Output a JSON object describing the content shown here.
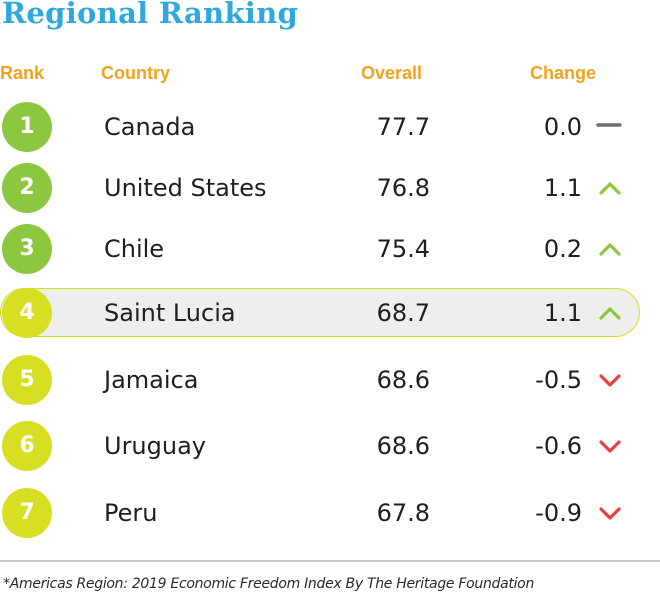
{
  "title": "Regional Ranking",
  "headers": {
    "rank": "Rank",
    "country": "Country",
    "overall": "Overall",
    "change": "Change"
  },
  "colors": {
    "title": "#2fa8dc",
    "header": "#f2a31b",
    "badge_green": "#8dc63f",
    "badge_lime": "#d7df23",
    "up": "#8dc63f",
    "down": "#e8413c",
    "flat": "#6d6e71",
    "highlight_bg": "#eeeeee",
    "highlight_border": "#d7df23"
  },
  "rows": [
    {
      "rank": "1",
      "country": "Canada",
      "overall": "77.7",
      "change": "0.0",
      "trend": "flat",
      "badge": "green",
      "highlight": false
    },
    {
      "rank": "2",
      "country": "United States",
      "overall": "76.8",
      "change": "1.1",
      "trend": "up",
      "badge": "green",
      "highlight": false
    },
    {
      "rank": "3",
      "country": "Chile",
      "overall": "75.4",
      "change": "0.2",
      "trend": "up",
      "badge": "green",
      "highlight": false
    },
    {
      "rank": "4",
      "country": "Saint Lucia",
      "overall": "68.7",
      "change": "1.1",
      "trend": "up",
      "badge": "lime",
      "highlight": true
    },
    {
      "rank": "5",
      "country": "Jamaica",
      "overall": "68.6",
      "change": "-0.5",
      "trend": "down",
      "badge": "lime",
      "highlight": false
    },
    {
      "rank": "6",
      "country": "Uruguay",
      "overall": "68.6",
      "change": "-0.6",
      "trend": "down",
      "badge": "lime",
      "highlight": false
    },
    {
      "rank": "7",
      "country": "Peru",
      "overall": "67.8",
      "change": "-0.9",
      "trend": "down",
      "badge": "lime",
      "highlight": false
    }
  ],
  "footnote": "*Americas Region: 2019 Economic Freedom Index By The Heritage Foundation"
}
